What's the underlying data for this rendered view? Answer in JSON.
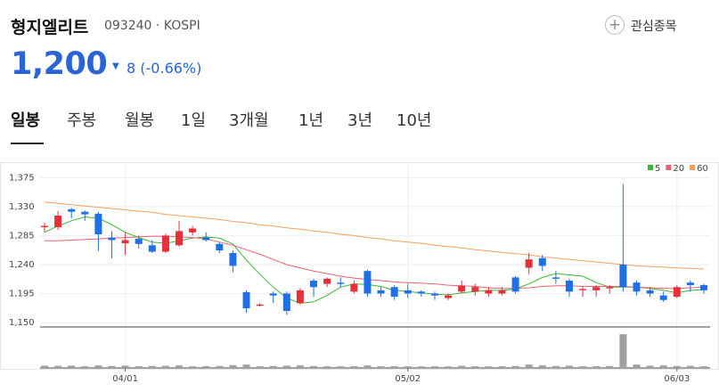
{
  "header": {
    "name": "형지엘리트",
    "code": "093240",
    "market": "KOSPI",
    "watchlist": "관심종목"
  },
  "quote": {
    "price": "1,200",
    "change": "8",
    "change_rate": "(-0.66%)"
  },
  "tabs": [
    "일봉",
    "주봉",
    "월봉",
    "1일",
    "3개월",
    "1년",
    "3년",
    "10년"
  ],
  "chart_data": {
    "type": "candlestick",
    "categories": [
      null,
      null,
      null,
      null,
      null,
      null,
      "04/01",
      null,
      null,
      null,
      null,
      null,
      null,
      null,
      null,
      null,
      null,
      null,
      null,
      null,
      null,
      null,
      null,
      null,
      null,
      null,
      null,
      "05/02",
      null,
      null,
      null,
      null,
      null,
      null,
      null,
      null,
      null,
      null,
      null,
      null,
      null,
      null,
      null,
      null,
      null,
      null,
      null,
      "06/03",
      null,
      null
    ],
    "open": [
      1298,
      1298,
      1326,
      1322,
      1319,
      1282,
      1273,
      1280,
      1270,
      1260,
      1270,
      1290,
      1282,
      1272,
      1258,
      1197,
      1176,
      1195,
      1195,
      1180,
      1215,
      1210,
      1212,
      1198,
      1230,
      1200,
      1205,
      1200,
      1198,
      1195,
      1188,
      1198,
      1198,
      1195,
      1195,
      1220,
      1235,
      1250,
      1220,
      1215,
      1200,
      1200,
      1203,
      1240,
      1212,
      1200,
      1192,
      1190,
      1212,
      1208
    ],
    "high": [
      1305,
      1323,
      1328,
      1324,
      1322,
      1292,
      1290,
      1285,
      1278,
      1288,
      1308,
      1300,
      1290,
      1275,
      1262,
      1200,
      1180,
      1198,
      1198,
      1203,
      1218,
      1220,
      1220,
      1215,
      1232,
      1205,
      1208,
      1210,
      1200,
      1198,
      1195,
      1215,
      1210,
      1205,
      1205,
      1222,
      1258,
      1255,
      1230,
      1218,
      1205,
      1208,
      1208,
      1365,
      1215,
      1205,
      1198,
      1208,
      1215,
      1210
    ],
    "low": [
      1290,
      1294,
      1312,
      1308,
      1261,
      1250,
      1255,
      1265,
      1258,
      1258,
      1268,
      1285,
      1276,
      1258,
      1228,
      1165,
      1175,
      1180,
      1162,
      1178,
      1190,
      1205,
      1205,
      1195,
      1190,
      1190,
      1185,
      1188,
      1190,
      1185,
      1185,
      1195,
      1192,
      1190,
      1192,
      1195,
      1225,
      1230,
      1210,
      1190,
      1190,
      1190,
      1195,
      1198,
      1192,
      1190,
      1182,
      1188,
      1198,
      1195
    ],
    "close": [
      1300,
      1316,
      1322,
      1318,
      1287,
      1278,
      1278,
      1272,
      1260,
      1285,
      1292,
      1296,
      1278,
      1262,
      1238,
      1172,
      1178,
      1192,
      1168,
      1200,
      1205,
      1218,
      1210,
      1210,
      1195,
      1195,
      1190,
      1195,
      1195,
      1192,
      1192,
      1207,
      1205,
      1200,
      1200,
      1198,
      1248,
      1238,
      1218,
      1198,
      1202,
      1205,
      1205,
      1205,
      1198,
      1195,
      1185,
      1205,
      1208,
      1200
    ],
    "up_color": "#e8303a",
    "down_color": "#1e6fe8",
    "series": [
      {
        "name": "5",
        "color": "#38b838",
        "values": [
          1290,
          1300,
          1308,
          1314,
          1312,
          1302,
          1290,
          1282,
          1275,
          1273,
          1277,
          1281,
          1283,
          1281,
          1272,
          1247,
          1225,
          1205,
          1188,
          1180,
          1182,
          1192,
          1205,
          1210,
          1209,
          1206,
          1200,
          1198,
          1196,
          1194,
          1193,
          1196,
          1198,
          1200,
          1200,
          1202,
          1210,
          1220,
          1226,
          1224,
          1222,
          1212,
          1205,
          1205,
          1205,
          1203,
          1200,
          1196,
          1200,
          1201
        ]
      },
      {
        "name": "20",
        "color": "#f06070",
        "values": [
          1277,
          1277,
          1278,
          1279,
          1280,
          1281,
          1282,
          1283,
          1284,
          1284,
          1283,
          1282,
          1280,
          1275,
          1270,
          1263,
          1256,
          1248,
          1240,
          1235,
          1230,
          1226,
          1222,
          1219,
          1217,
          1215,
          1213,
          1212,
          1211,
          1210,
          1208,
          1207,
          1206,
          1204,
          1203,
          1203,
          1204,
          1206,
          1207,
          1207,
          1206,
          1206,
          1206,
          1206,
          1205,
          1204,
          1203,
          1203,
          1204,
          1205
        ]
      },
      {
        "name": "60",
        "color": "#f0a060",
        "values": [
          1337,
          1335,
          1333,
          1331,
          1329,
          1327,
          1325,
          1323,
          1321,
          1318,
          1316,
          1314,
          1312,
          1310,
          1307,
          1305,
          1302,
          1300,
          1297,
          1295,
          1292,
          1290,
          1287,
          1285,
          1282,
          1280,
          1277,
          1275,
          1273,
          1270,
          1268,
          1266,
          1263,
          1261,
          1259,
          1257,
          1255,
          1252,
          1250,
          1248,
          1246,
          1244,
          1242,
          1240,
          1238,
          1237,
          1236,
          1235,
          1234,
          1233
        ]
      }
    ],
    "ylim": [
      1150,
      1388
    ],
    "yticks": [
      {
        "value": 1150,
        "label": "1,150"
      },
      {
        "value": 1195,
        "label": "1,195"
      },
      {
        "value": 1240,
        "label": "1,240"
      },
      {
        "value": 1285,
        "label": "1,285"
      },
      {
        "value": 1330,
        "label": "1,330"
      },
      {
        "value": 1375,
        "label": "1,375"
      }
    ],
    "grid": true,
    "legend": "top-right",
    "volume": [
      40000,
      38000,
      42000,
      30000,
      45000,
      35000,
      40000,
      30000,
      35000,
      38000,
      45000,
      30000,
      32000,
      35000,
      50000,
      60000,
      30000,
      35000,
      40000,
      45000,
      35000,
      30000,
      30000,
      32000,
      45000,
      30000,
      32000,
      30000,
      28000,
      30000,
      28000,
      38000,
      30000,
      28000,
      30000,
      35000,
      60000,
      45000,
      35000,
      40000,
      30000,
      32000,
      35000,
      600000,
      60000,
      40000,
      45000,
      35000,
      38000,
      30000
    ],
    "volume_color": "#a0a0a0",
    "volume_lim": [
      0,
      650000
    ]
  }
}
